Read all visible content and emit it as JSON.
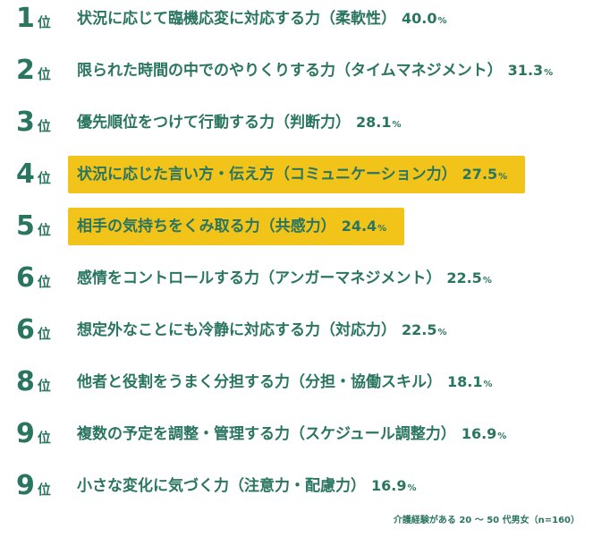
{
  "chart_data": {
    "type": "table",
    "rank_suffix": "位",
    "unit": "%",
    "highlight_color": "#f2c41a",
    "text_color": "#2a7560",
    "rows": [
      {
        "rank": "1",
        "label": "状況に応じて臨機応変に対応する力（柔軟性）",
        "value": "40.0",
        "highlighted": false
      },
      {
        "rank": "2",
        "label": "限られた時間の中でのやりくりする力（タイムマネジメント）",
        "value": "31.3",
        "highlighted": false
      },
      {
        "rank": "3",
        "label": "優先順位をつけて行動する力（判断力）",
        "value": "28.1",
        "highlighted": false
      },
      {
        "rank": "4",
        "label": "状況に応じた言い方・伝え方（コミュニケーション力）",
        "value": "27.5",
        "highlighted": true
      },
      {
        "rank": "5",
        "label": "相手の気持ちをくみ取る力（共感力）",
        "value": "24.4",
        "highlighted": true
      },
      {
        "rank": "6",
        "label": "感情をコントロールする力（アンガーマネジメント）",
        "value": "22.5",
        "highlighted": false
      },
      {
        "rank": "6",
        "label": "想定外なことにも冷静に対応する力（対応力）",
        "value": "22.5",
        "highlighted": false
      },
      {
        "rank": "8",
        "label": "他者と役割をうまく分担する力（分担・協働スキル）",
        "value": "18.1",
        "highlighted": false
      },
      {
        "rank": "9",
        "label": "複数の予定を調整・管理する力（スケジュール調整力）",
        "value": "16.9",
        "highlighted": false
      },
      {
        "rank": "9",
        "label": "小さな変化に気づく力（注意力・配慮力）",
        "value": "16.9",
        "highlighted": false
      }
    ],
    "footnote": "介護経験がある 20 〜 50 代男女（n=160）"
  }
}
